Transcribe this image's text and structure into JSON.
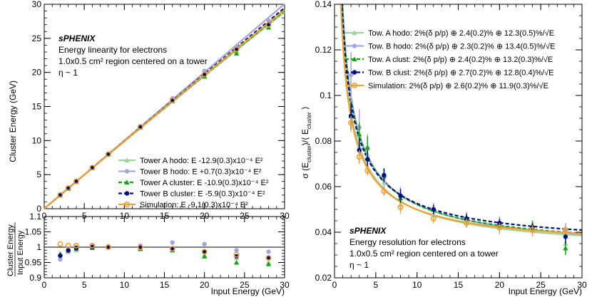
{
  "chart_data": [
    {
      "type": "scatter",
      "panel": "left-top",
      "xlabel": "",
      "ylabel": "Cluster Energy (GeV)",
      "xlim": [
        0,
        30
      ],
      "ylim": [
        0,
        30
      ],
      "x_ticks": [
        0,
        5,
        10,
        15,
        20,
        25,
        30
      ],
      "y_ticks": [
        0,
        5,
        10,
        15,
        20,
        25,
        30
      ],
      "annotations": [
        "sPHENIX",
        "Energy linearity for electrons",
        "1.0x0.5 cm² region centered on a tower",
        "η ~ 1"
      ],
      "legend_position": "bottom-right",
      "x": [
        2,
        3,
        4,
        6,
        8,
        12,
        16,
        20,
        24,
        28
      ],
      "series": [
        {
          "name": "Tower A hodo: E -12.9(0.3)x10⁻⁴ E²",
          "color": "#9fd49f",
          "marker": "triangle",
          "line": "solid",
          "fit_a": -0.00129,
          "values": [
            1.95,
            2.93,
            3.9,
            5.95,
            7.95,
            11.9,
            15.75,
            19.5,
            23.1,
            26.6
          ]
        },
        {
          "name": "Tower B hodo: E +0.7(0.3)x10⁻⁴ E²",
          "color": "#a6a6dd",
          "marker": "circle",
          "line": "solid",
          "fit_a": 7e-05,
          "values": [
            1.95,
            3.0,
            4.0,
            6.05,
            8.02,
            12.1,
            16.2,
            20.2,
            23.7,
            27.6
          ]
        },
        {
          "name": "Tower A cluster: E -10.9(0.3)x10⁻⁴ E²",
          "color": "#11a611",
          "marker": "triangle",
          "line": "dashed",
          "fit_a": -0.00109,
          "values": [
            1.95,
            2.95,
            3.95,
            5.97,
            7.98,
            11.95,
            15.8,
            19.4,
            22.8,
            26.6
          ]
        },
        {
          "name": "Tower B cluster: E -5.9(0.3)x10⁻⁴ E²",
          "color": "#000f7f",
          "marker": "circle",
          "line": "dashed",
          "fit_a": -0.00059,
          "values": [
            1.95,
            2.96,
            3.97,
            6.0,
            8.0,
            12.0,
            15.9,
            19.7,
            23.3,
            27.1
          ]
        },
        {
          "name": "Simulation: E -9.1(0.3)x10⁻⁴ E²",
          "color": "#f0a030",
          "marker": "open-circle",
          "line": "solid",
          "fit_a": -0.00091,
          "values": [
            2.02,
            3.02,
            4.02,
            6.03,
            8.0,
            12.0,
            15.9,
            19.7,
            23.4,
            27.0
          ]
        }
      ]
    },
    {
      "type": "scatter",
      "panel": "left-bottom",
      "xlabel": "Input Energy (GeV)",
      "ylabel_top": "Cluster Energy",
      "ylabel_bottom": "Input Energy",
      "xlim": [
        0,
        30
      ],
      "ylim": [
        0.9,
        1.1
      ],
      "x_ticks": [
        0,
        5,
        10,
        15,
        20,
        25,
        30
      ],
      "y_ticks": [
        0.9,
        0.95,
        1,
        1.05,
        1.1
      ],
      "y_tick_labels": [
        "0.9",
        "0.95",
        "1",
        "1.05",
        "1.1"
      ],
      "reference_line": 1,
      "x": [
        2,
        3,
        4,
        6,
        8,
        12,
        16,
        20,
        24,
        28
      ],
      "series": [
        {
          "name": "Tower A hodo",
          "color": "#9fd49f",
          "marker": "triangle",
          "values": [
            0.978,
            0.985,
            0.99,
            1.0,
            1.0,
            0.993,
            0.99,
            0.975,
            0.965,
            0.95
          ]
        },
        {
          "name": "Tower B hodo",
          "color": "#a6a6dd",
          "marker": "circle",
          "values": [
            0.96,
            0.985,
            1.0,
            1.005,
            1.003,
            1.005,
            1.015,
            1.01,
            0.99,
            0.985
          ]
        },
        {
          "name": "Tower A cluster",
          "color": "#11a611",
          "marker": "triangle",
          "values": [
            0.978,
            0.99,
            0.995,
            0.998,
            1.0,
            0.995,
            0.99,
            0.97,
            0.95,
            0.945
          ]
        },
        {
          "name": "Tower B cluster",
          "color": "#000f7f",
          "marker": "circle",
          "values": [
            0.972,
            0.99,
            0.997,
            1.0,
            1.001,
            1.0,
            0.995,
            0.985,
            0.97,
            0.965
          ]
        },
        {
          "name": "Simulation",
          "color": "#f0a030",
          "marker": "open-circle",
          "values": [
            1.01,
            1.005,
            1.005,
            1.005,
            1.0,
            1.0,
            0.995,
            0.985,
            0.975,
            0.965
          ]
        }
      ]
    },
    {
      "type": "scatter",
      "panel": "right",
      "xlabel": "Input Energy (GeV)",
      "ylabel_main": "σ (E",
      "ylabel_sub1": "cluster",
      "ylabel_mid": ")/⟨ E",
      "ylabel_sub2": "cluster",
      "ylabel_end": " ⟩",
      "xlim": [
        0,
        30
      ],
      "ylim": [
        0.02,
        0.14
      ],
      "x_ticks": [
        0,
        5,
        10,
        15,
        20,
        25,
        30
      ],
      "y_ticks": [
        0.02,
        0.04,
        0.06,
        0.08,
        0.1,
        0.12,
        0.14
      ],
      "y_tick_labels": [
        "0.02",
        "0.04",
        "0.06",
        "0.08",
        "0.1",
        "0.12",
        "0.14"
      ],
      "annotations": [
        "sPHENIX",
        "Energy resolution for electrons",
        "1.0x0.5 cm² region centered on a tower",
        "η ~ 1"
      ],
      "legend_position": "top-right",
      "x": [
        2,
        3,
        4,
        6,
        8,
        12,
        16,
        20,
        24,
        28
      ],
      "series": [
        {
          "name": "Tow. A hodo: 2%(δ p/p) ⊕ 2.4(0.2)% ⊕ 12.3(0.5)%/√E",
          "color": "#9fd49f",
          "marker": "triangle",
          "line": "solid",
          "fit": [
            2.0,
            2.4,
            12.3
          ],
          "values": [
            0.092,
            0.078,
            0.074,
            0.062,
            0.052,
            0.048,
            0.045,
            0.042,
            0.041,
            0.035
          ],
          "errors": [
            0.008,
            0.006,
            0.006,
            0.004,
            0.004,
            0.003,
            0.003,
            0.003,
            0.003,
            0.004
          ]
        },
        {
          "name": "Tow. B hodo: 2%(δ p/p) ⊕ 2.3(0.2)% ⊕ 13.4(0.5)%/√E",
          "color": "#a6a6dd",
          "marker": "circle",
          "line": "solid",
          "fit": [
            2.0,
            2.3,
            13.4
          ],
          "values": [
            0.109,
            0.086,
            0.077,
            0.064,
            0.056,
            0.05,
            0.046,
            0.044,
            0.042,
            0.041
          ],
          "errors": [
            0.01,
            0.008,
            0.006,
            0.004,
            0.004,
            0.003,
            0.003,
            0.003,
            0.003,
            0.003
          ]
        },
        {
          "name": "Tow. A clust: 2%(δ p/p) ⊕ 2.4(0.2)% ⊕ 13.2(0.3)%/√E",
          "color": "#11a611",
          "marker": "triangle",
          "line": "dashed",
          "fit": [
            2.0,
            2.4,
            13.2
          ],
          "values": [
            0.091,
            0.083,
            0.077,
            0.065,
            0.055,
            0.05,
            0.046,
            0.043,
            0.043,
            0.033
          ],
          "errors": [
            0.006,
            0.005,
            0.005,
            0.003,
            0.003,
            0.002,
            0.002,
            0.002,
            0.002,
            0.003
          ]
        },
        {
          "name": "Tow. B clust: 2%(δ p/p) ⊕ 2.7(0.2)% ⊕ 12.8(0.4)%/√E",
          "color": "#000f7f",
          "marker": "circle",
          "line": "dashed",
          "fit": [
            2.0,
            2.7,
            12.8
          ],
          "values": [
            0.091,
            0.076,
            0.072,
            0.065,
            0.056,
            0.05,
            0.046,
            0.044,
            0.042,
            0.038
          ],
          "errors": [
            0.006,
            0.005,
            0.004,
            0.003,
            0.003,
            0.002,
            0.002,
            0.002,
            0.002,
            0.003
          ]
        },
        {
          "name": "Simulation: 2%(δ p/p) ⊕ 2.6(0.2)% ⊕ 11.9(0.3)%/√E",
          "color": "#f0a030",
          "marker": "open-circle",
          "line": "solid",
          "fit": [
            2.0,
            2.6,
            11.9
          ],
          "values": [
            0.088,
            0.073,
            0.067,
            0.058,
            0.051,
            0.046,
            0.044,
            0.042,
            0.041,
            0.041
          ],
          "errors": [
            0.003,
            0.003,
            0.002,
            0.002,
            0.002,
            0.002,
            0.002,
            0.002,
            0.002,
            0.002
          ]
        }
      ]
    }
  ]
}
